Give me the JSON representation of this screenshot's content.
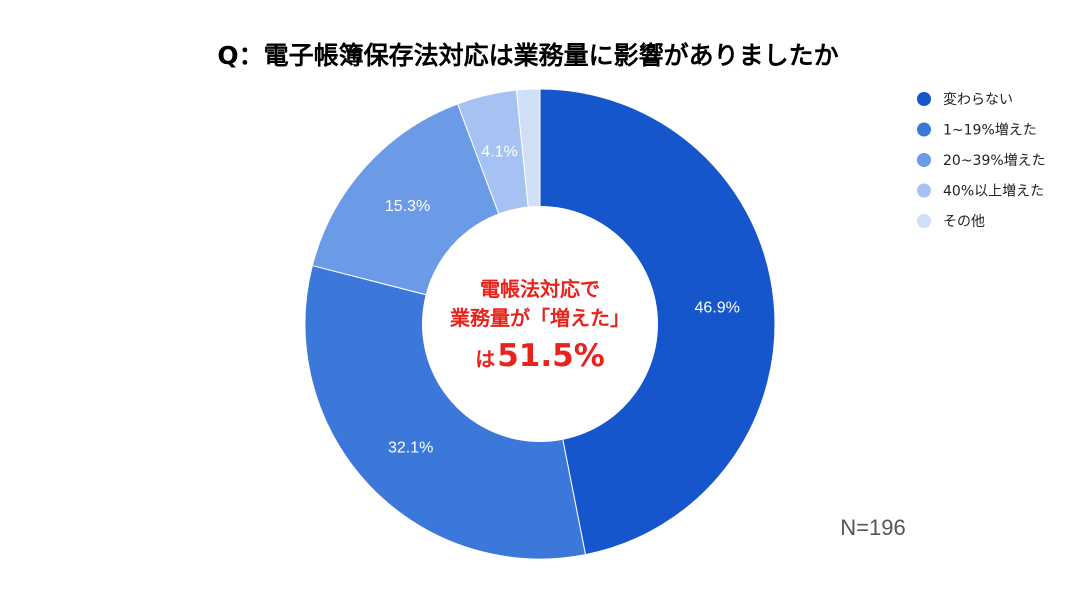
{
  "chart_data": {
    "type": "pie",
    "title": "Q：電子帳簿保存法対応は業務量に影響がありましたか",
    "slices": [
      {
        "name": "変わらない",
        "value": 46.9,
        "label": "46.9%",
        "color": "#1656cc"
      },
      {
        "name": "1~19%増えた",
        "value": 32.1,
        "label": "32.1%",
        "color": "#3b78d9"
      },
      {
        "name": "20~39%増えた",
        "value": 15.3,
        "label": "15.3%",
        "color": "#6b9ae6"
      },
      {
        "name": "40%以上増えた",
        "value": 4.1,
        "label": "4.1%",
        "color": "#a5c2f2"
      },
      {
        "name": "その他",
        "value": 1.6,
        "label": "",
        "color": "#cfdff8"
      }
    ],
    "legend_position": "top-right",
    "center_annotation": {
      "line1": "電帳法対応で",
      "line2": "業務量が「増えた」",
      "line3_prefix": "は",
      "line3_value": "51.5%"
    },
    "note": "N=196"
  }
}
